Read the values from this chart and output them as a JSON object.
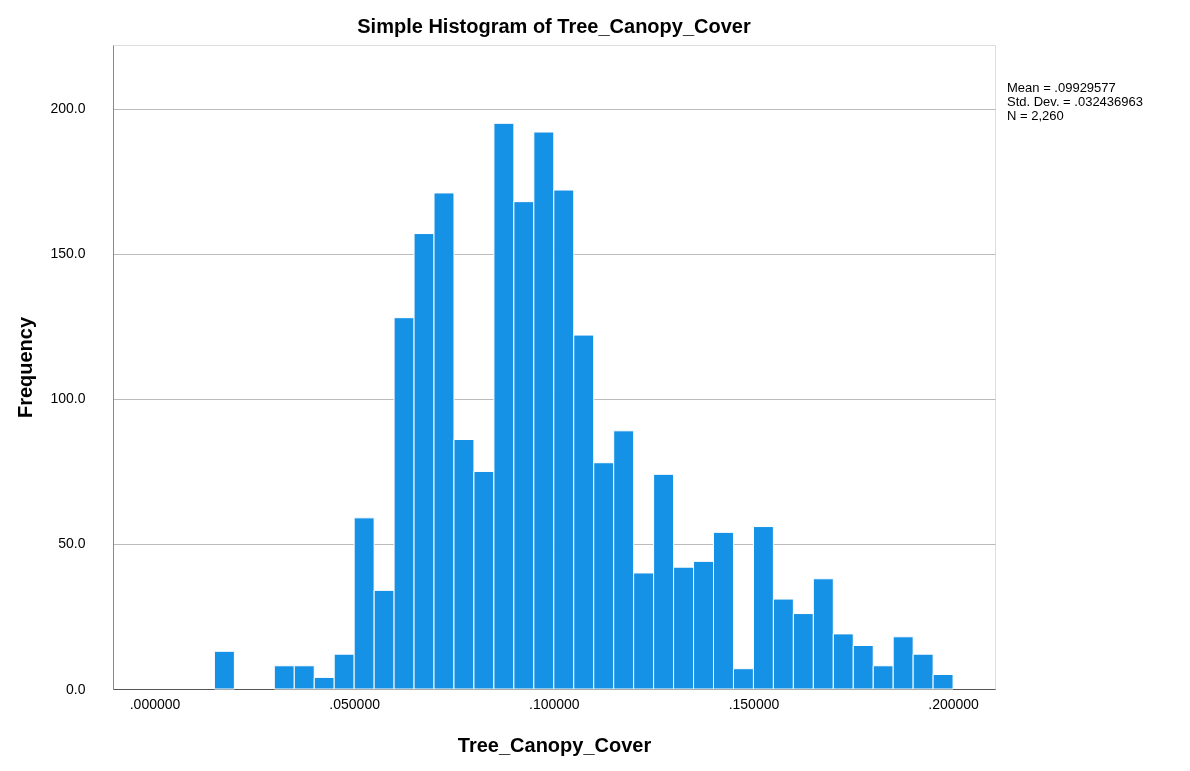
{
  "chart_data": {
    "type": "histogram",
    "title": "Simple Histogram of Tree_Canopy_Cover",
    "xlabel": "Tree_Canopy_Cover",
    "ylabel": "Frequency",
    "bins": [
      0.015,
      0.02,
      0.025,
      0.03,
      0.035,
      0.04,
      0.045,
      0.05,
      0.055,
      0.06,
      0.065,
      0.07,
      0.075,
      0.08,
      0.085,
      0.09,
      0.095,
      0.1,
      0.105,
      0.11,
      0.115,
      0.12,
      0.125,
      0.13,
      0.135,
      0.14,
      0.145,
      0.15,
      0.155,
      0.16,
      0.165,
      0.17,
      0.175,
      0.18,
      0.185,
      0.19,
      0.195,
      0.2
    ],
    "values": [
      13,
      0,
      0,
      8,
      8,
      4,
      12,
      59,
      34,
      128,
      157,
      171,
      86,
      75,
      195,
      168,
      192,
      172,
      122,
      78,
      89,
      40,
      74,
      42,
      44,
      54,
      7,
      56,
      31,
      26,
      38,
      19,
      15,
      8,
      18,
      12,
      5
    ],
    "color": "#1591e6",
    "xlim": [
      -0.0104,
      0.2105
    ],
    "ylim": [
      0,
      222
    ],
    "xticks": [
      {
        "value": 0,
        "label": ".000000"
      },
      {
        "value": 0.05,
        "label": ".050000"
      },
      {
        "value": 0.1,
        "label": ".100000"
      },
      {
        "value": 0.15,
        "label": ".150000"
      },
      {
        "value": 0.2,
        "label": ".200000"
      }
    ],
    "yticks": [
      {
        "value": 0,
        "label": "0.0"
      },
      {
        "value": 50,
        "label": "50.0"
      },
      {
        "value": 100,
        "label": "100.0"
      },
      {
        "value": 150,
        "label": "150.0"
      },
      {
        "value": 200,
        "label": "200.0"
      }
    ],
    "grid": "y",
    "annotations": [
      "Mean = .09929577",
      "Std. Dev. = .032436963",
      "N = 2,260"
    ]
  }
}
